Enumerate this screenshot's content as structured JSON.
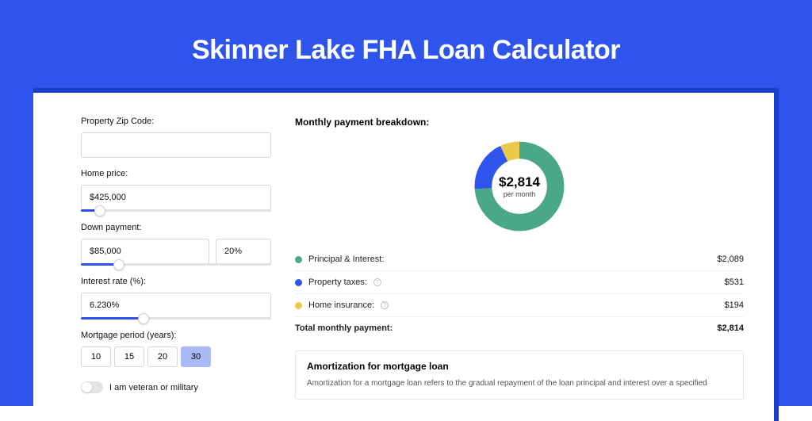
{
  "page": {
    "title": "Skinner Lake FHA Loan Calculator",
    "background_color": "#2e54eb",
    "shadow_color": "#1b3fc9",
    "card_color": "#ffffff"
  },
  "form": {
    "zip": {
      "label": "Property Zip Code:",
      "value": ""
    },
    "home_price": {
      "label": "Home price:",
      "value": "$425,000",
      "slider_pct": 10
    },
    "down_payment": {
      "label": "Down payment:",
      "value": "$85,000",
      "pct_value": "20%",
      "slider_pct": 20
    },
    "interest_rate": {
      "label": "Interest rate (%):",
      "value": "6.230%",
      "slider_pct": 33
    },
    "mortgage_period": {
      "label": "Mortgage period (years):",
      "options": [
        "10",
        "15",
        "20",
        "30"
      ],
      "selected": "30"
    },
    "veteran": {
      "label": "I am veteran or military",
      "on": false
    }
  },
  "breakdown": {
    "title": "Monthly payment breakdown:",
    "donut": {
      "amount": "$2,814",
      "sub": "per month",
      "slices": [
        {
          "color": "#4aa789",
          "pct": 74
        },
        {
          "color": "#2e54eb",
          "pct": 19
        },
        {
          "color": "#ecc94b",
          "pct": 7
        }
      ],
      "stroke_width": 18
    },
    "items": [
      {
        "label": "Principal & Interest:",
        "value": "$2,089",
        "color": "#4aa789",
        "info": false
      },
      {
        "label": "Property taxes:",
        "value": "$531",
        "color": "#2e54eb",
        "info": true
      },
      {
        "label": "Home insurance:",
        "value": "$194",
        "color": "#ecc94b",
        "info": true
      }
    ],
    "total": {
      "label": "Total monthly payment:",
      "value": "$2,814"
    }
  },
  "amortization": {
    "title": "Amortization for mortgage loan",
    "desc": "Amortization for a mortgage loan refers to the gradual repayment of the loan principal and interest over a specified"
  }
}
